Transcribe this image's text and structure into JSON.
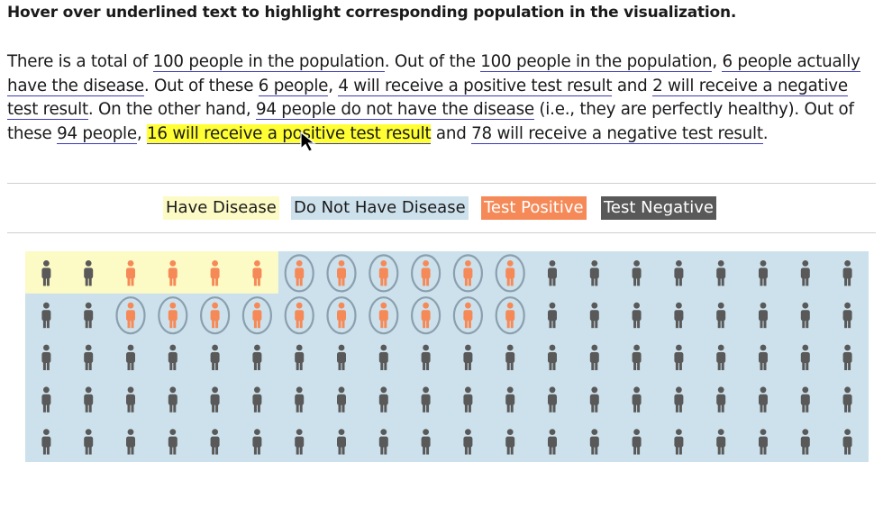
{
  "instruction": "Hover over underlined text to highlight corresponding population in the visualization.",
  "paragraph": [
    {
      "text": "There is a total of "
    },
    {
      "text": "100 people in the population",
      "link": true,
      "name": "link-100-population"
    },
    {
      "text": ". Out of the "
    },
    {
      "text": "100 people in the population",
      "link": true,
      "name": "link-100-population-2"
    },
    {
      "text": ", "
    },
    {
      "text": "6 people actually have the disease",
      "link": true,
      "name": "link-6-have-disease"
    },
    {
      "text": ". Out of these "
    },
    {
      "text": "6 people",
      "link": true,
      "name": "link-6-people"
    },
    {
      "text": ", "
    },
    {
      "text": "4 will receive a positive test result",
      "link": true,
      "name": "link-4-positive"
    },
    {
      "text": " and "
    },
    {
      "text": "2 will receive a negative test result",
      "link": true,
      "name": "link-2-negative"
    },
    {
      "text": ". On the other hand, "
    },
    {
      "text": "94 people do not have the disease",
      "link": true,
      "name": "link-94-no-disease"
    },
    {
      "text": " (i.e., they are perfectly healthy). Out of these "
    },
    {
      "text": "94 people",
      "link": true,
      "name": "link-94-people"
    },
    {
      "text": ", "
    },
    {
      "text": "16 will receive a positive test result",
      "link": true,
      "highlighted": true,
      "name": "link-16-positive"
    },
    {
      "text": " and "
    },
    {
      "text": "78 will receive a negative test result",
      "link": true,
      "name": "link-78-negative"
    },
    {
      "text": "."
    }
  ],
  "legend": {
    "have_disease": "Have Disease",
    "no_disease": "Do Not Have Disease",
    "test_positive": "Test Positive",
    "test_negative": "Test Negative"
  },
  "colors": {
    "have_disease_bg": "#fdfbc5",
    "no_disease_bg": "#cde1ec",
    "positive": "#f58a58",
    "negative": "#595959",
    "highlight": "#ffff33",
    "ring": "#8aa0ae"
  },
  "population": {
    "total": 100,
    "columns": 20,
    "rows": 5,
    "have_disease": {
      "count": 6,
      "positive": 4,
      "negative": 2
    },
    "no_disease": {
      "count": 94,
      "positive": 16,
      "negative": 78
    },
    "grid": [
      [
        "HN",
        "HN",
        "HP",
        "HP",
        "HP",
        "HP",
        "NPx",
        "NPx",
        "NPx",
        "NPx",
        "NPx",
        "NPx",
        "NN",
        "NN",
        "NN",
        "NN",
        "NN",
        "NN",
        "NN",
        "NN"
      ],
      [
        "NN",
        "NN",
        "NPx",
        "NPx",
        "NPx",
        "NPx",
        "NPx",
        "NPx",
        "NPx",
        "NPx",
        "NPx",
        "NPx",
        "NN",
        "NN",
        "NN",
        "NN",
        "NN",
        "NN",
        "NN",
        "NN"
      ],
      [
        "NN",
        "NN",
        "NN",
        "NN",
        "NN",
        "NN",
        "NN",
        "NN",
        "NN",
        "NN",
        "NN",
        "NN",
        "NN",
        "NN",
        "NN",
        "NN",
        "NN",
        "NN",
        "NN",
        "NN"
      ],
      [
        "NN",
        "NN",
        "NN",
        "NN",
        "NN",
        "NN",
        "NN",
        "NN",
        "NN",
        "NN",
        "NN",
        "NN",
        "NN",
        "NN",
        "NN",
        "NN",
        "NN",
        "NN",
        "NN",
        "NN"
      ],
      [
        "NN",
        "NN",
        "NN",
        "NN",
        "NN",
        "NN",
        "NN",
        "NN",
        "NN",
        "NN",
        "NN",
        "NN",
        "NN",
        "NN",
        "NN",
        "NN",
        "NN",
        "NN",
        "NN",
        "NN"
      ]
    ]
  }
}
